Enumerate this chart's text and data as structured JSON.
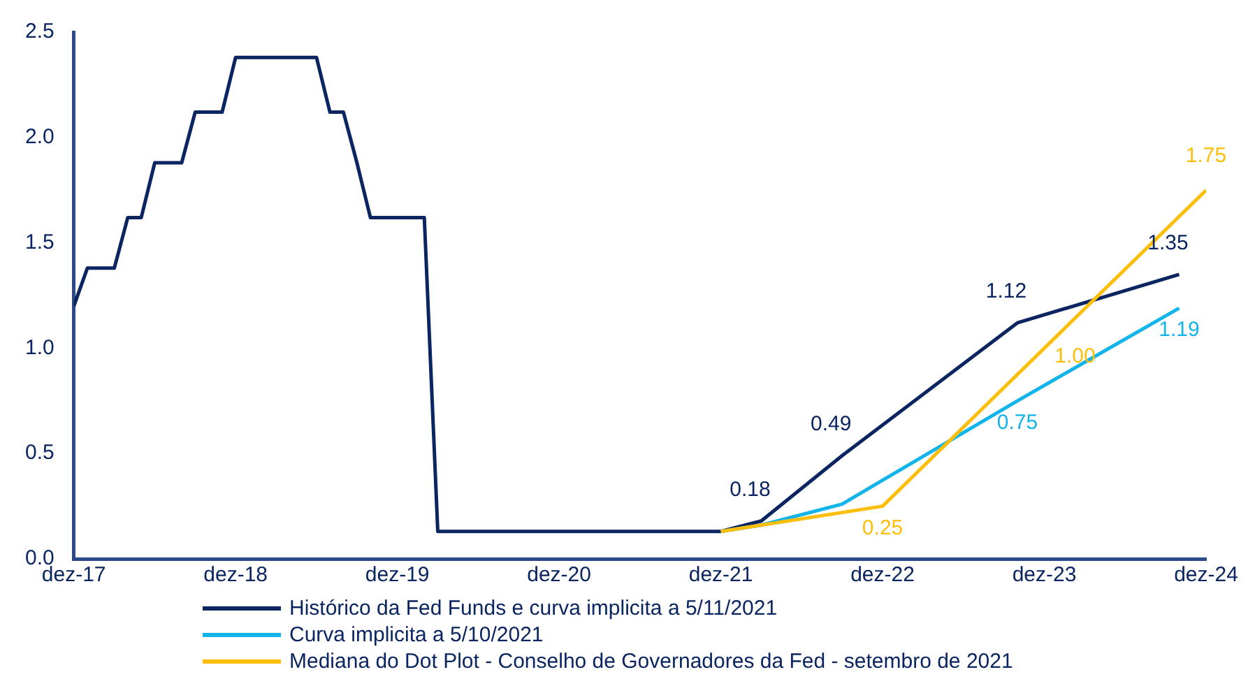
{
  "chart_data": {
    "type": "line",
    "xlim": [
      "2017-12",
      "2024-12"
    ],
    "xticks": [
      {
        "value": "2017-12",
        "label": "dez-17"
      },
      {
        "value": "2018-12",
        "label": "dez-18"
      },
      {
        "value": "2019-12",
        "label": "dez-19"
      },
      {
        "value": "2020-12",
        "label": "dez-20"
      },
      {
        "value": "2021-12",
        "label": "dez-21"
      },
      {
        "value": "2022-12",
        "label": "dez-22"
      },
      {
        "value": "2023-12",
        "label": "dez-23"
      },
      {
        "value": "2024-12",
        "label": "dez-24"
      }
    ],
    "ylim": [
      0,
      2.5
    ],
    "yticks": [
      {
        "value": 0,
        "label": "0.0"
      },
      {
        "value": 0.5,
        "label": "0.5"
      },
      {
        "value": 1,
        "label": "1.0"
      },
      {
        "value": 1.5,
        "label": "1.5"
      },
      {
        "value": 2,
        "label": "2.0"
      },
      {
        "value": 2.5,
        "label": "2.5"
      }
    ],
    "grid": false,
    "legend": "bottom",
    "marker": "none",
    "line_style": "solid",
    "series": [
      {
        "name": "Histórico da Fed Funds e curva implicita a 5/11/2021",
        "color": "#0b2561",
        "x": [
          "2017-12",
          "2018-01",
          "2018-03",
          "2018-04",
          "2018-05",
          "2018-06",
          "2018-08",
          "2018-09",
          "2018-11",
          "2018-12",
          "2019-06",
          "2019-07",
          "2019-08",
          "2019-09",
          "2019-10",
          "2020-02",
          "2020-03",
          "2021-12",
          "2022-03",
          "2022-09",
          "2023-10",
          "2024-10"
        ],
        "values": [
          1.2,
          1.38,
          1.38,
          1.62,
          1.62,
          1.88,
          1.88,
          2.12,
          2.12,
          2.38,
          2.38,
          2.12,
          2.12,
          1.88,
          1.62,
          1.62,
          0.13,
          0.13,
          0.18,
          0.49,
          1.12,
          1.35
        ],
        "value_labels": [
          null,
          null,
          null,
          null,
          null,
          null,
          null,
          null,
          null,
          null,
          null,
          null,
          null,
          null,
          null,
          null,
          null,
          null,
          "0.18",
          "0.49",
          "1.12",
          "1.35"
        ]
      },
      {
        "name": "Curva implicita a 5/10/2021",
        "color": "#12b4ea",
        "x": [
          "2021-12",
          "2022-03",
          "2022-09",
          "2023-10",
          "2024-10"
        ],
        "values": [
          0.13,
          0.16,
          0.26,
          0.75,
          1.19
        ],
        "value_labels": [
          null,
          null,
          null,
          "0.75",
          "1.19"
        ]
      },
      {
        "name": "Mediana do Dot Plot - Conselho de Governadores da Fed - setembro de 2021",
        "color": "#fbbf0b",
        "x": [
          "2021-12",
          "2022-12",
          "2023-12",
          "2024-12"
        ],
        "values": [
          0.13,
          0.25,
          1.0,
          1.75
        ],
        "value_labels": [
          null,
          "0.25",
          "1.00",
          "1.75"
        ]
      }
    ]
  }
}
